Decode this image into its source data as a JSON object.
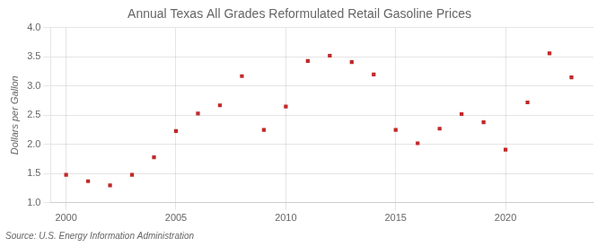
{
  "chart_data": {
    "type": "scatter",
    "title": "Annual Texas All Grades Reformulated Retail Gasoline Prices",
    "ylabel": "Dollars per Gallon",
    "annotations": [
      "Source: U.S. Energy Information Administration"
    ],
    "x": [
      2000,
      2001,
      2002,
      2003,
      2004,
      2005,
      2006,
      2007,
      2008,
      2009,
      2010,
      2011,
      2012,
      2013,
      2014,
      2015,
      2016,
      2017,
      2018,
      2019,
      2020,
      2021,
      2022,
      2023
    ],
    "values": [
      1.48,
      1.37,
      1.3,
      1.48,
      1.78,
      2.23,
      2.53,
      2.67,
      3.17,
      2.25,
      2.65,
      3.43,
      3.52,
      3.41,
      3.2,
      2.25,
      2.02,
      2.27,
      2.52,
      2.38,
      1.91,
      2.72,
      3.56,
      3.15
    ],
    "color": "#c0292b",
    "marker": "square",
    "xlim": [
      1999.3,
      2024.0
    ],
    "xticks": [
      2000,
      2005,
      2010,
      2015,
      2020
    ],
    "ylim": [
      1.0,
      4.0
    ],
    "yticks": [
      {
        "value": 1.0,
        "label": "1.0"
      },
      1.5,
      {
        "value": 2.0,
        "label": "2.0"
      },
      2.5,
      {
        "value": 3.0,
        "label": "3.0"
      },
      3.5,
      {
        "value": 4.0,
        "label": "4.0"
      }
    ],
    "grid": true
  }
}
